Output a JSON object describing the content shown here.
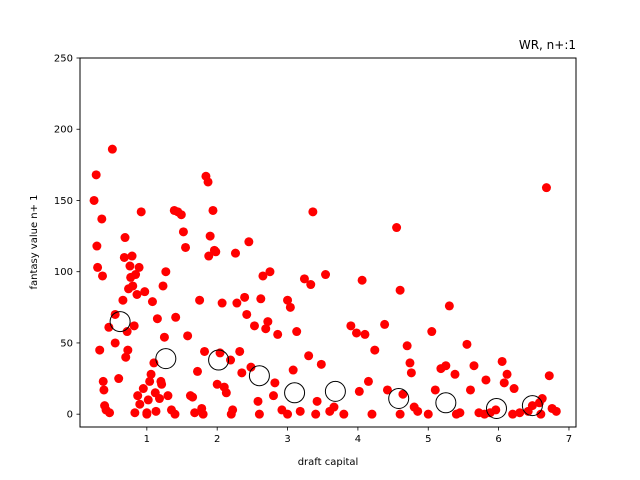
{
  "chart_data": {
    "type": "scatter",
    "title": "WR, n+:1",
    "xlabel": "draft capital",
    "ylabel": "fantasy value n+ 1",
    "xlim": [
      0.05,
      7.1
    ],
    "ylim": [
      -9,
      250
    ],
    "xticks": [
      1,
      2,
      3,
      4,
      5,
      6,
      7
    ],
    "yticks": [
      0,
      50,
      100,
      150,
      200,
      250
    ],
    "grid": false,
    "legend": "none",
    "series": [
      {
        "marker": "filled-circle",
        "color": "#ff0000",
        "points": [
          [
            0.25,
            150
          ],
          [
            0.28,
            168
          ],
          [
            0.29,
            118
          ],
          [
            0.3,
            103
          ],
          [
            0.33,
            45
          ],
          [
            0.36,
            137
          ],
          [
            0.37,
            97
          ],
          [
            0.38,
            23
          ],
          [
            0.39,
            17
          ],
          [
            0.4,
            6
          ],
          [
            0.42,
            3
          ],
          [
            0.46,
            61
          ],
          [
            0.47,
            1
          ],
          [
            0.51,
            186
          ],
          [
            0.55,
            70
          ],
          [
            0.55,
            50
          ],
          [
            0.6,
            25
          ],
          [
            0.66,
            80
          ],
          [
            0.68,
            110
          ],
          [
            0.69,
            124
          ],
          [
            0.7,
            40
          ],
          [
            0.72,
            58
          ],
          [
            0.73,
            45
          ],
          [
            0.74,
            88
          ],
          [
            0.76,
            104
          ],
          [
            0.77,
            96
          ],
          [
            0.79,
            111
          ],
          [
            0.8,
            90
          ],
          [
            0.82,
            62
          ],
          [
            0.83,
            1
          ],
          [
            0.84,
            98
          ],
          [
            0.86,
            84
          ],
          [
            0.87,
            13
          ],
          [
            0.89,
            103
          ],
          [
            0.9,
            7
          ],
          [
            0.92,
            142
          ],
          [
            0.95,
            18
          ],
          [
            0.97,
            86
          ],
          [
            1.0,
            1
          ],
          [
            1.02,
            10
          ],
          [
            1.04,
            23
          ],
          [
            1.06,
            28
          ],
          [
            1.08,
            79
          ],
          [
            1.1,
            36
          ],
          [
            1.12,
            15
          ],
          [
            1.13,
            2
          ],
          [
            1.15,
            67
          ],
          [
            1.18,
            11
          ],
          [
            1.2,
            23
          ],
          [
            1.21,
            21
          ],
          [
            1.23,
            90
          ],
          [
            1.25,
            54
          ],
          [
            1.27,
            100
          ],
          [
            1.3,
            13
          ],
          [
            1.35,
            3
          ],
          [
            1.39,
            143
          ],
          [
            1.41,
            68
          ],
          [
            1.44,
            142
          ],
          [
            1.49,
            140
          ],
          [
            1.52,
            128
          ],
          [
            1.55,
            117
          ],
          [
            1.58,
            55
          ],
          [
            1.62,
            13
          ],
          [
            1.65,
            12
          ],
          [
            1.68,
            1
          ],
          [
            1.72,
            30
          ],
          [
            1.75,
            80
          ],
          [
            1.78,
            4
          ],
          [
            1.82,
            44
          ],
          [
            1.84,
            167
          ],
          [
            1.87,
            163
          ],
          [
            1.88,
            111
          ],
          [
            1.9,
            125
          ],
          [
            1.94,
            143
          ],
          [
            1.96,
            115
          ],
          [
            1.98,
            114
          ],
          [
            2.0,
            21
          ],
          [
            2.04,
            43
          ],
          [
            2.07,
            78
          ],
          [
            2.1,
            19
          ],
          [
            2.13,
            15
          ],
          [
            2.19,
            38
          ],
          [
            2.22,
            3
          ],
          [
            2.26,
            113
          ],
          [
            2.28,
            78
          ],
          [
            2.32,
            44
          ],
          [
            2.35,
            29
          ],
          [
            2.39,
            82
          ],
          [
            2.42,
            70
          ],
          [
            2.45,
            121
          ],
          [
            2.48,
            33
          ],
          [
            2.53,
            62
          ],
          [
            2.58,
            9
          ],
          [
            2.62,
            81
          ],
          [
            2.65,
            97
          ],
          [
            2.69,
            60
          ],
          [
            2.72,
            65
          ],
          [
            2.75,
            100
          ],
          [
            2.8,
            13
          ],
          [
            2.82,
            22
          ],
          [
            2.86,
            56
          ],
          [
            2.92,
            3
          ],
          [
            3.0,
            80
          ],
          [
            3.04,
            75
          ],
          [
            3.08,
            31
          ],
          [
            3.13,
            58
          ],
          [
            3.18,
            2
          ],
          [
            3.24,
            95
          ],
          [
            3.3,
            41
          ],
          [
            3.33,
            91
          ],
          [
            3.36,
            142
          ],
          [
            3.42,
            9
          ],
          [
            3.48,
            35
          ],
          [
            3.54,
            98
          ],
          [
            3.6,
            2
          ],
          [
            3.66,
            5
          ],
          [
            3.9,
            62
          ],
          [
            3.98,
            57
          ],
          [
            4.02,
            16
          ],
          [
            4.06,
            94
          ],
          [
            4.1,
            56
          ],
          [
            4.15,
            23
          ],
          [
            4.24,
            45
          ],
          [
            4.38,
            63
          ],
          [
            4.42,
            17
          ],
          [
            4.55,
            131
          ],
          [
            4.6,
            87
          ],
          [
            4.64,
            14
          ],
          [
            4.7,
            48
          ],
          [
            4.74,
            36
          ],
          [
            4.76,
            29
          ],
          [
            4.8,
            5
          ],
          [
            4.85,
            2
          ],
          [
            5.05,
            58
          ],
          [
            5.1,
            17
          ],
          [
            5.18,
            32
          ],
          [
            5.25,
            34
          ],
          [
            5.3,
            76
          ],
          [
            5.38,
            28
          ],
          [
            5.45,
            1
          ],
          [
            5.55,
            49
          ],
          [
            5.6,
            17
          ],
          [
            5.65,
            34
          ],
          [
            5.72,
            1
          ],
          [
            5.82,
            24
          ],
          [
            5.88,
            1
          ],
          [
            5.96,
            3
          ],
          [
            6.05,
            37
          ],
          [
            6.08,
            22
          ],
          [
            6.12,
            28
          ],
          [
            6.22,
            18
          ],
          [
            6.3,
            1
          ],
          [
            6.42,
            2
          ],
          [
            6.48,
            6
          ],
          [
            6.58,
            8
          ],
          [
            6.62,
            11
          ],
          [
            6.68,
            159
          ],
          [
            6.72,
            27
          ],
          [
            6.76,
            4
          ],
          [
            6.82,
            2
          ],
          [
            1.0,
            0
          ],
          [
            1.4,
            0
          ],
          [
            1.8,
            0
          ],
          [
            2.2,
            0
          ],
          [
            2.6,
            0
          ],
          [
            3.0,
            0
          ],
          [
            3.4,
            0
          ],
          [
            3.8,
            0
          ],
          [
            4.2,
            0
          ],
          [
            4.6,
            0
          ],
          [
            5.0,
            0
          ],
          [
            5.4,
            0
          ],
          [
            5.8,
            0
          ],
          [
            6.2,
            0
          ],
          [
            6.6,
            0
          ]
        ]
      },
      {
        "marker": "open-circle",
        "color": "#000000",
        "points": [
          [
            0.62,
            65
          ],
          [
            1.27,
            39
          ],
          [
            2.02,
            38
          ],
          [
            2.6,
            27
          ],
          [
            3.1,
            15
          ],
          [
            3.68,
            16
          ],
          [
            4.58,
            11
          ],
          [
            5.25,
            8
          ],
          [
            5.97,
            4
          ],
          [
            6.48,
            6
          ]
        ]
      }
    ]
  }
}
